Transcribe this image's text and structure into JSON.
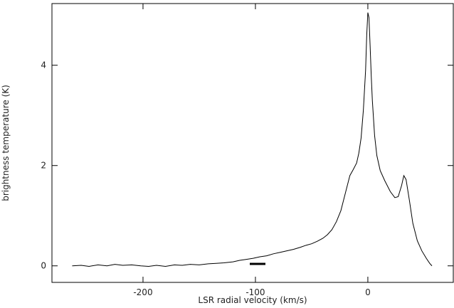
{
  "chart_data": {
    "type": "line",
    "xlabel": "LSR radial velocity (km/s)",
    "ylabel": "brightness temperature (K)",
    "xlim": [
      -281,
      76
    ],
    "ylim": [
      -0.33,
      5.23
    ],
    "xticks": [
      -200,
      -100,
      0
    ],
    "yticks": [
      0,
      2,
      4
    ],
    "series": [
      {
        "color": "#000000",
        "x": [
          -263,
          -255,
          -248,
          -240,
          -232,
          -225,
          -218,
          -210,
          -202,
          -195,
          -188,
          -180,
          -172,
          -165,
          -158,
          -150,
          -142,
          -135,
          -128,
          -120,
          -114,
          -108,
          -102,
          -96,
          -90,
          -84,
          -78,
          -72,
          -66,
          -60,
          -55,
          -50,
          -45,
          -40,
          -36,
          -32,
          -28,
          -24,
          -20,
          -16,
          -13,
          -10,
          -8,
          -6,
          -4,
          -2,
          -1,
          0,
          1,
          2,
          3,
          4,
          6,
          8,
          11,
          15,
          20,
          24,
          27,
          30,
          32,
          34,
          37,
          40,
          44,
          48,
          52,
          55,
          57
        ],
        "values": [
          0.0,
          0.01,
          -0.01,
          0.02,
          0.0,
          0.03,
          0.01,
          0.02,
          0.0,
          -0.01,
          0.01,
          -0.01,
          0.02,
          0.01,
          0.03,
          0.02,
          0.04,
          0.05,
          0.06,
          0.08,
          0.11,
          0.13,
          0.15,
          0.18,
          0.2,
          0.24,
          0.27,
          0.3,
          0.33,
          0.37,
          0.41,
          0.44,
          0.49,
          0.55,
          0.62,
          0.72,
          0.88,
          1.1,
          1.45,
          1.8,
          1.92,
          2.05,
          2.25,
          2.55,
          3.1,
          3.9,
          4.6,
          5.05,
          4.95,
          4.4,
          3.8,
          3.3,
          2.6,
          2.2,
          1.9,
          1.7,
          1.48,
          1.36,
          1.38,
          1.6,
          1.8,
          1.72,
          1.3,
          0.85,
          0.5,
          0.3,
          0.15,
          0.05,
          0.0
        ]
      }
    ]
  }
}
